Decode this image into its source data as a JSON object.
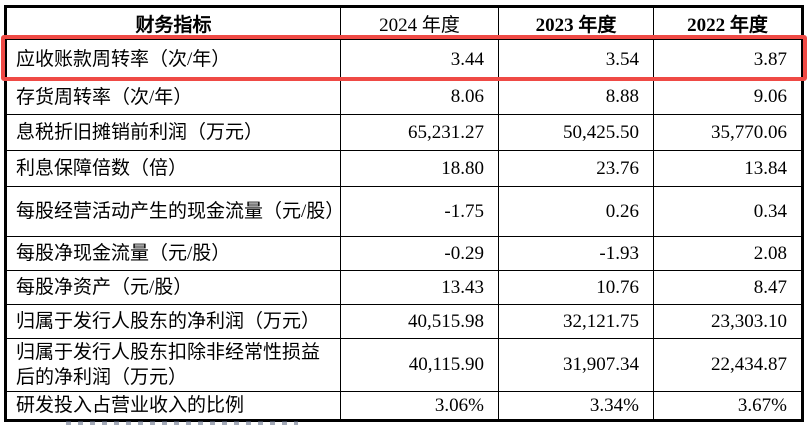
{
  "table": {
    "header": {
      "indicator": "财务指标",
      "years": [
        {
          "label": "2024 年度"
        },
        {
          "label": "2023 年度"
        },
        {
          "label": "2022 年度"
        }
      ]
    },
    "rows": [
      {
        "indicator": "应收账款周转率（次/年）",
        "values": [
          "3.44",
          "3.54",
          "3.87"
        ],
        "highlighted": true
      },
      {
        "indicator": "存货周转率（次/年）",
        "values": [
          "8.06",
          "8.88",
          "9.06"
        ],
        "highlighted": false
      },
      {
        "indicator": "息税折旧摊销前利润（万元）",
        "values": [
          "65,231.27",
          "50,425.50",
          "35,770.06"
        ],
        "highlighted": false
      },
      {
        "indicator": "利息保障倍数（倍）",
        "values": [
          "18.80",
          "23.76",
          "13.84"
        ],
        "highlighted": false
      },
      {
        "indicator": "每股经营活动产生的现金流量（元/股）",
        "values": [
          "-1.75",
          "0.26",
          "0.34"
        ],
        "highlighted": false
      },
      {
        "indicator": "每股净现金流量（元/股）",
        "values": [
          "-0.29",
          "-1.93",
          "2.08"
        ],
        "highlighted": false
      },
      {
        "indicator": "每股净资产（元/股）",
        "values": [
          "13.43",
          "10.76",
          "8.47"
        ],
        "highlighted": false
      },
      {
        "indicator": "归属于发行人股东的净利润（万元）",
        "values": [
          "40,515.98",
          "32,121.75",
          "23,303.10"
        ],
        "highlighted": false
      },
      {
        "indicator": "归属于发行人股东扣除非经常性损益后的净利润（万元）",
        "values": [
          "40,115.90",
          "31,907.34",
          "22,434.87"
        ],
        "highlighted": false
      },
      {
        "indicator": "研发投入占营业收入的比例",
        "values": [
          "3.06%",
          "3.34%",
          "3.67%"
        ],
        "highlighted": false
      }
    ],
    "highlight_color": "#ef4a45"
  }
}
